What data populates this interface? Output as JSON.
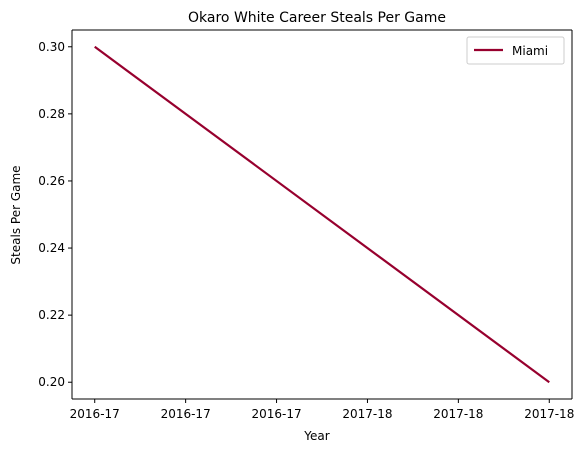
{
  "chart_data": {
    "type": "line",
    "title": "Okaro White Career Steals Per Game",
    "xlabel": "Year",
    "ylabel": "Steals Per Game",
    "x_tick_labels": [
      "2016-17",
      "2016-17",
      "2016-17",
      "2017-18",
      "2017-18",
      "2017-18"
    ],
    "x_range": [
      -0.25,
      5.25
    ],
    "ylim": [
      0.195,
      0.305
    ],
    "y_ticks": [
      0.2,
      0.22,
      0.24,
      0.26,
      0.28,
      0.3
    ],
    "y_tick_labels": [
      "0.20",
      "0.22",
      "0.24",
      "0.26",
      "0.28",
      "0.30"
    ],
    "grid": false,
    "legend_position": "top-right",
    "series": [
      {
        "name": "Miami",
        "color": "#97002e",
        "x": [
          0,
          5
        ],
        "values": [
          0.3,
          0.2
        ]
      }
    ]
  }
}
